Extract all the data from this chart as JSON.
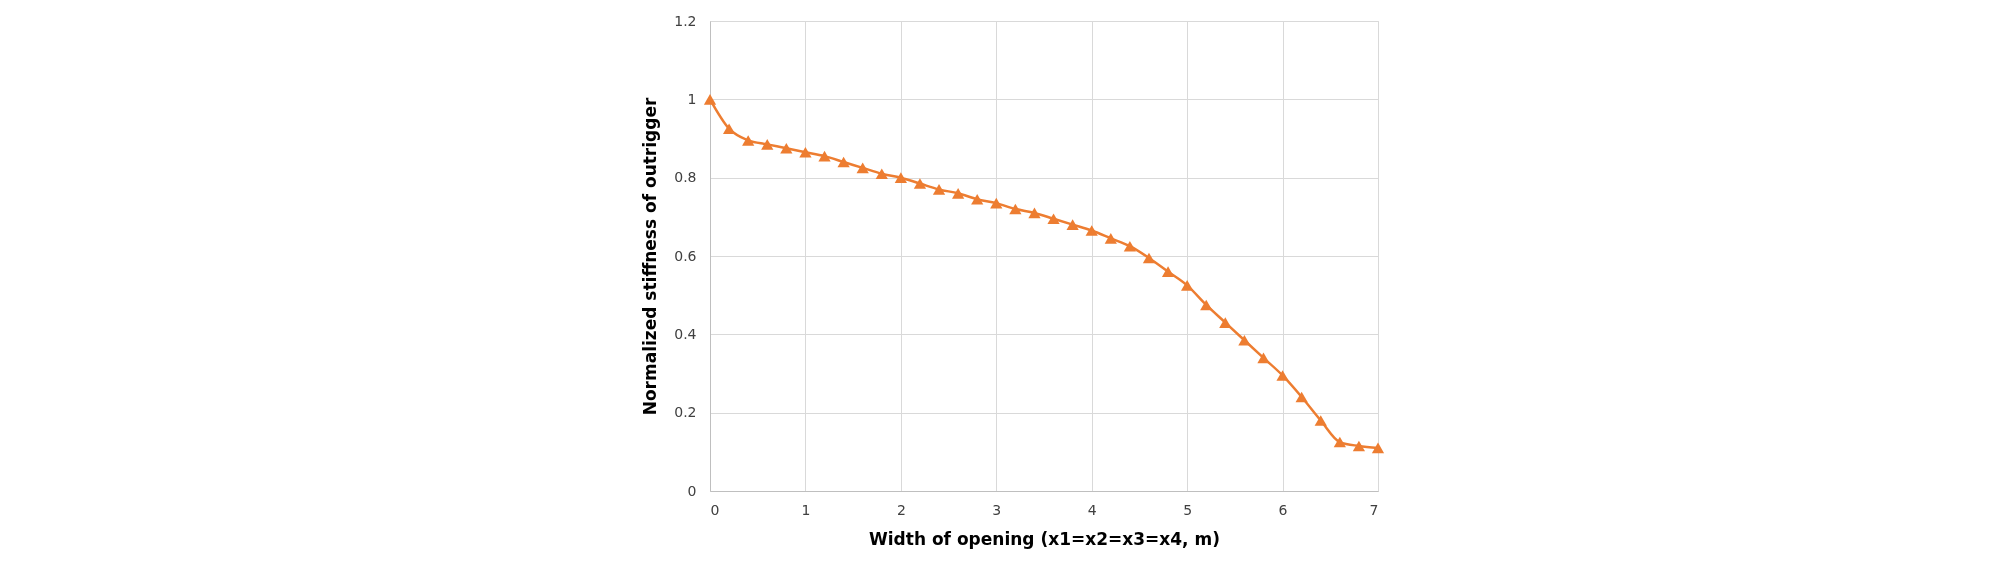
{
  "chart_data": {
    "type": "line",
    "xlabel": "Width of opening (x1=x2=x3=x4, m)",
    "ylabel": "Normalized stiffness of outrigger",
    "x": [
      0,
      0.2,
      0.4,
      0.6,
      0.8,
      1,
      1.2,
      1.4,
      1.6,
      1.8,
      2,
      2.2,
      2.4,
      2.6,
      2.8,
      3,
      3.2,
      3.4,
      3.6,
      3.8,
      4,
      4.2,
      4.4,
      4.6,
      4.8,
      5,
      5.2,
      5.4,
      5.6,
      5.8,
      6,
      6.2,
      6.4,
      6.6,
      6.8,
      7
    ],
    "series": [
      {
        "color": "#ed7d31",
        "values": [
          1,
          0.925,
          0.895,
          0.885,
          0.875,
          0.865,
          0.855,
          0.84,
          0.825,
          0.81,
          0.8,
          0.785,
          0.77,
          0.76,
          0.745,
          0.735,
          0.72,
          0.71,
          0.695,
          0.68,
          0.665,
          0.645,
          0.625,
          0.595,
          0.56,
          0.525,
          0.475,
          0.43,
          0.385,
          0.34,
          0.295,
          0.24,
          0.18,
          0.125,
          0.115,
          0.11
        ]
      }
    ],
    "xlim": [
      0,
      7
    ],
    "xticks": [
      0,
      1,
      2,
      3,
      4,
      5,
      6,
      7
    ],
    "ylim": [
      0,
      1.2
    ],
    "yticks": [
      0,
      0.2,
      0.4,
      0.6,
      0.8,
      1,
      1.2
    ],
    "grid": true,
    "marker": "triangle",
    "line_style": "solid",
    "legend": false
  }
}
